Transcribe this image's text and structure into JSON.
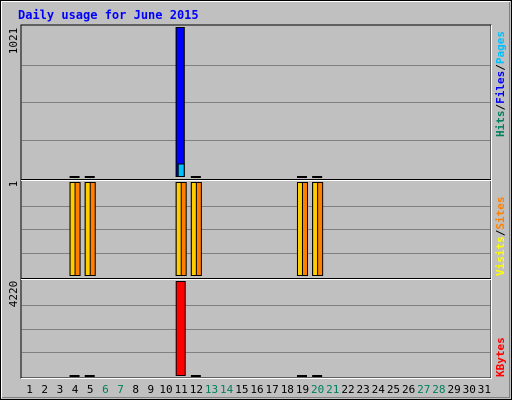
{
  "chart_data": {
    "type": "bar",
    "title": "Daily usage for June 2015",
    "categories": [
      "1",
      "2",
      "3",
      "4",
      "5",
      "6",
      "7",
      "8",
      "9",
      "10",
      "11",
      "12",
      "13",
      "14",
      "15",
      "16",
      "17",
      "18",
      "19",
      "20",
      "21",
      "22",
      "23",
      "24",
      "25",
      "26",
      "27",
      "28",
      "29",
      "30",
      "31"
    ],
    "weekend_days": [
      "6",
      "7",
      "13",
      "14",
      "20",
      "21",
      "27",
      "28"
    ],
    "grid": true,
    "panels": [
      {
        "id": "top",
        "ymax_label": "1021",
        "ymax": 1021,
        "legend": [
          {
            "text": "Hits",
            "color": "#00805c"
          },
          {
            "text": "/",
            "color": "#000000"
          },
          {
            "text": "Files",
            "color": "#0000ff"
          },
          {
            "text": "/",
            "color": "#000000"
          },
          {
            "text": "Pages",
            "color": "#00c0ff"
          }
        ],
        "series": [
          {
            "name": "Hits",
            "color": "#00805c",
            "values": [
              0,
              0,
              0,
              0,
              0,
              0,
              0,
              0,
              0,
              0,
              1021,
              0,
              0,
              0,
              0,
              0,
              0,
              0,
              0,
              0,
              0,
              0,
              0,
              0,
              0,
              0,
              0,
              0,
              0,
              0,
              0
            ]
          },
          {
            "name": "Files",
            "color": "#0000ff",
            "values": [
              0,
              0,
              0,
              0,
              0,
              0,
              0,
              0,
              0,
              0,
              1021,
              0,
              0,
              0,
              0,
              0,
              0,
              0,
              0,
              0,
              0,
              0,
              0,
              0,
              0,
              0,
              0,
              0,
              0,
              0,
              0
            ]
          },
          {
            "name": "Pages",
            "color": "#00c0ff",
            "values": [
              0,
              0,
              0,
              0,
              0,
              0,
              0,
              0,
              0,
              0,
              92,
              0,
              0,
              0,
              0,
              0,
              0,
              0,
              0,
              0,
              0,
              0,
              0,
              0,
              0,
              0,
              0,
              0,
              0,
              0,
              0
            ]
          }
        ]
      },
      {
        "id": "middle",
        "ymax_label": "1",
        "ymax": 1,
        "legend": [
          {
            "text": "Visits",
            "color": "#ffff00"
          },
          {
            "text": "/",
            "color": "#000000"
          },
          {
            "text": "Sites",
            "color": "#ff8000"
          }
        ],
        "series": [
          {
            "name": "Visits",
            "color": "#ffcc00",
            "values": [
              0,
              0,
              0,
              1,
              1,
              0,
              0,
              0,
              0,
              0,
              1,
              1,
              0,
              0,
              0,
              0,
              0,
              0,
              1,
              1,
              0,
              0,
              0,
              0,
              0,
              0,
              0,
              0,
              0,
              0,
              0
            ]
          },
          {
            "name": "Sites",
            "color": "#ff8000",
            "values": [
              0,
              0,
              0,
              1,
              1,
              0,
              0,
              0,
              0,
              0,
              1,
              1,
              0,
              0,
              0,
              0,
              0,
              0,
              1,
              1,
              0,
              0,
              0,
              0,
              0,
              0,
              0,
              0,
              0,
              0,
              0
            ]
          }
        ]
      },
      {
        "id": "bottom",
        "ymax_label": "4220",
        "ymax": 4220,
        "legend": [
          {
            "text": "KBytes",
            "color": "#ff0000"
          }
        ],
        "series": [
          {
            "name": "KBytes",
            "color": "#ff0000",
            "values": [
              0,
              0,
              0,
              1,
              1,
              0,
              0,
              0,
              0,
              0,
              4220,
              1,
              0,
              0,
              0,
              0,
              0,
              0,
              1,
              1,
              0,
              0,
              0,
              0,
              0,
              0,
              0,
              0,
              0,
              0,
              0
            ]
          }
        ]
      }
    ]
  }
}
